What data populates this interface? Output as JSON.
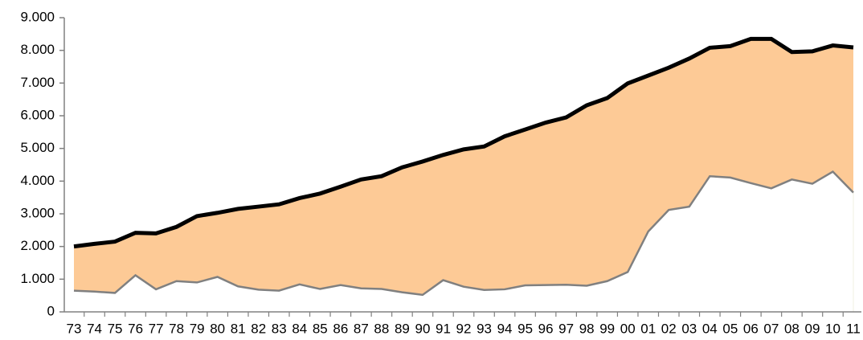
{
  "chart_data": {
    "type": "area",
    "categories": [
      "73",
      "74",
      "75",
      "76",
      "77",
      "78",
      "79",
      "80",
      "81",
      "82",
      "83",
      "84",
      "85",
      "86",
      "87",
      "88",
      "89",
      "90",
      "91",
      "92",
      "93",
      "94",
      "95",
      "96",
      "97",
      "98",
      "99",
      "00",
      "01",
      "02",
      "03",
      "04",
      "05",
      "06",
      "07",
      "08",
      "09",
      "10",
      "11"
    ],
    "series": [
      {
        "color": "#fdca96",
        "line_color": "#000000",
        "values": [
          2000,
          2080,
          2150,
          2420,
          2400,
          2600,
          2930,
          3030,
          3150,
          3220,
          3290,
          3480,
          3620,
          3830,
          4050,
          4150,
          4420,
          4600,
          4800,
          4970,
          5060,
          5370,
          5580,
          5790,
          5950,
          6320,
          6540,
          6990,
          7230,
          7470,
          7750,
          8080,
          8130,
          8350,
          8350,
          7950,
          7970,
          8150,
          8090
        ]
      },
      {
        "color": "#ffffff",
        "line_color": "#808080",
        "values": [
          650,
          620,
          580,
          1120,
          690,
          940,
          900,
          1070,
          780,
          680,
          650,
          840,
          700,
          820,
          720,
          700,
          600,
          520,
          970,
          770,
          670,
          690,
          810,
          820,
          830,
          800,
          940,
          1220,
          2460,
          3120,
          3220,
          4150,
          4110,
          3940,
          3780,
          4050,
          3920,
          4290,
          3650
        ]
      }
    ],
    "ylim": [
      0,
      9000
    ],
    "yticks": [
      {
        "value": 0,
        "label": "0"
      },
      {
        "value": 1000,
        "label": "1.000"
      },
      {
        "value": 2000,
        "label": "2.000"
      },
      {
        "value": 3000,
        "label": "3.000"
      },
      {
        "value": 4000,
        "label": "4.000"
      },
      {
        "value": 5000,
        "label": "5.000"
      },
      {
        "value": 6000,
        "label": "6.000"
      },
      {
        "value": 7000,
        "label": "7.000"
      },
      {
        "value": 8000,
        "label": "8.000"
      },
      {
        "value": 9000,
        "label": "9.000"
      }
    ]
  }
}
